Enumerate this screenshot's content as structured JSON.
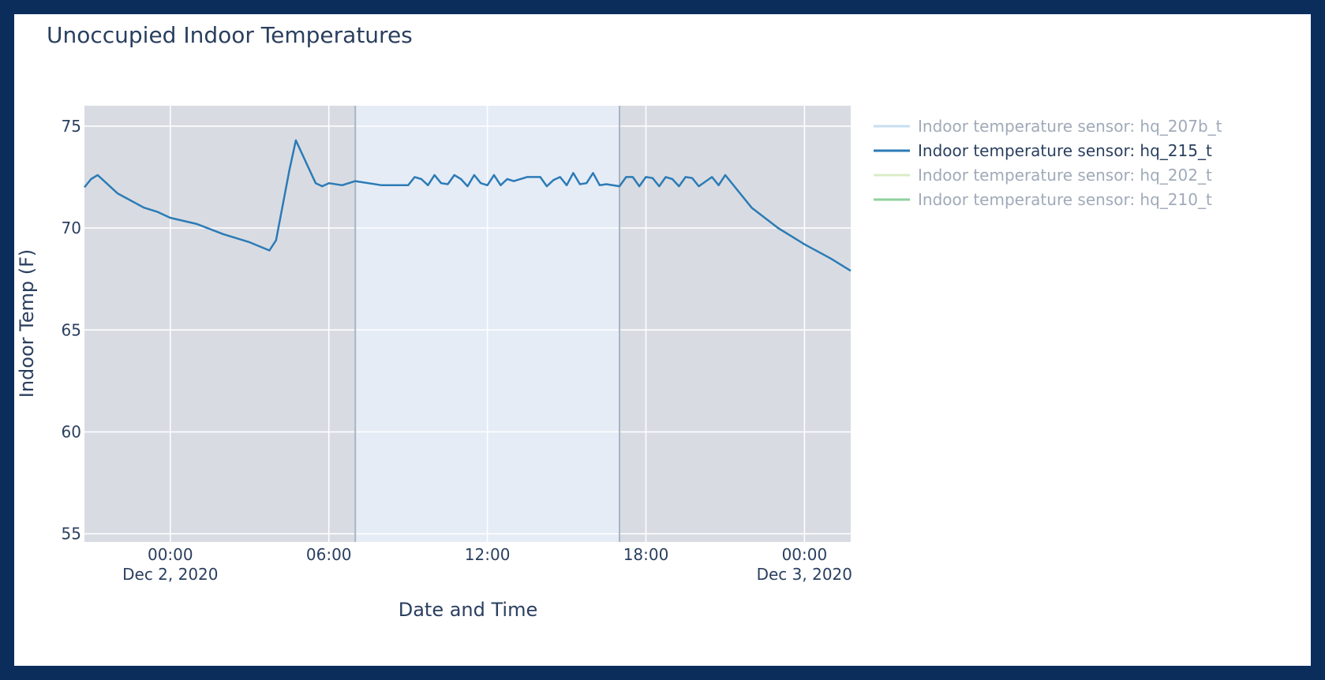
{
  "chart_data": {
    "type": "line",
    "title": "Unoccupied Indoor Temperatures",
    "xlabel": "Date and Time",
    "ylabel": "Indoor Temp (F)",
    "x_tick_labels": [
      {
        "time": "2020-12-02T00:00",
        "line1": "00:00",
        "line2": "Dec 2, 2020"
      },
      {
        "time": "2020-12-02T06:00",
        "line1": "06:00",
        "line2": ""
      },
      {
        "time": "2020-12-02T12:00",
        "line1": "12:00",
        "line2": ""
      },
      {
        "time": "2020-12-02T18:00",
        "line1": "18:00",
        "line2": ""
      },
      {
        "time": "2020-12-03T00:00",
        "line1": "00:00",
        "line2": "Dec 3, 2020"
      }
    ],
    "xlim": [
      "2020-12-01T20:45",
      "2020-12-03T01:45"
    ],
    "y_ticks": [
      55,
      60,
      65,
      70,
      75
    ],
    "ylim": [
      54.6,
      76
    ],
    "grid": true,
    "legend_position": "right",
    "shaded_regions": [
      {
        "start": "2020-12-01T20:45",
        "end": "2020-12-02T07:00",
        "label": "unoccupied"
      },
      {
        "start": "2020-12-02T17:00",
        "end": "2020-12-03T01:45",
        "label": "unoccupied"
      }
    ],
    "series": [
      {
        "name": "Indoor temperature sensor: hq_207b_t",
        "color": "#c7dff0",
        "visible": false,
        "x": [],
        "y": []
      },
      {
        "name": "Indoor temperature sensor: hq_215_t",
        "color": "#2c7bb6",
        "visible": true,
        "x": [
          "2020-12-01T20:45",
          "2020-12-01T21:00",
          "2020-12-01T21:15",
          "2020-12-01T22:00",
          "2020-12-01T23:00",
          "2020-12-01T23:30",
          "2020-12-02T00:00",
          "2020-12-02T01:00",
          "2020-12-02T02:00",
          "2020-12-02T03:00",
          "2020-12-02T03:45",
          "2020-12-02T04:00",
          "2020-12-02T04:30",
          "2020-12-02T04:45",
          "2020-12-02T05:15",
          "2020-12-02T05:30",
          "2020-12-02T05:45",
          "2020-12-02T06:00",
          "2020-12-02T06:30",
          "2020-12-02T07:00",
          "2020-12-02T08:00",
          "2020-12-02T09:00",
          "2020-12-02T09:15",
          "2020-12-02T09:30",
          "2020-12-02T09:45",
          "2020-12-02T10:00",
          "2020-12-02T10:15",
          "2020-12-02T10:30",
          "2020-12-02T10:45",
          "2020-12-02T11:00",
          "2020-12-02T11:15",
          "2020-12-02T11:30",
          "2020-12-02T11:45",
          "2020-12-02T12:00",
          "2020-12-02T12:15",
          "2020-12-02T12:30",
          "2020-12-02T12:45",
          "2020-12-02T13:00",
          "2020-12-02T13:30",
          "2020-12-02T14:00",
          "2020-12-02T14:15",
          "2020-12-02T14:30",
          "2020-12-02T14:45",
          "2020-12-02T15:00",
          "2020-12-02T15:15",
          "2020-12-02T15:30",
          "2020-12-02T15:45",
          "2020-12-02T16:00",
          "2020-12-02T16:15",
          "2020-12-02T16:30",
          "2020-12-02T17:00",
          "2020-12-02T17:15",
          "2020-12-02T17:30",
          "2020-12-02T17:45",
          "2020-12-02T18:00",
          "2020-12-02T18:15",
          "2020-12-02T18:30",
          "2020-12-02T18:45",
          "2020-12-02T19:00",
          "2020-12-02T19:15",
          "2020-12-02T19:30",
          "2020-12-02T19:45",
          "2020-12-02T20:00",
          "2020-12-02T20:30",
          "2020-12-02T20:45",
          "2020-12-02T21:00",
          "2020-12-02T22:00",
          "2020-12-02T23:00",
          "2020-12-03T00:00",
          "2020-12-03T01:00",
          "2020-12-03T01:45"
        ],
        "y": [
          72.0,
          72.4,
          72.6,
          71.7,
          71.0,
          70.8,
          70.5,
          70.2,
          69.7,
          69.3,
          68.9,
          69.4,
          72.8,
          74.3,
          72.9,
          72.2,
          72.05,
          72.2,
          72.1,
          72.3,
          72.1,
          72.1,
          72.5,
          72.4,
          72.1,
          72.6,
          72.2,
          72.15,
          72.6,
          72.4,
          72.05,
          72.6,
          72.2,
          72.1,
          72.6,
          72.1,
          72.4,
          72.3,
          72.5,
          72.5,
          72.05,
          72.35,
          72.5,
          72.1,
          72.7,
          72.15,
          72.2,
          72.7,
          72.1,
          72.15,
          72.05,
          72.5,
          72.5,
          72.05,
          72.5,
          72.45,
          72.05,
          72.5,
          72.4,
          72.05,
          72.5,
          72.45,
          72.05,
          72.5,
          72.1,
          72.6,
          71.0,
          70.0,
          69.2,
          68.5,
          67.9
        ]
      },
      {
        "name": "Indoor temperature sensor: hq_202_t",
        "color": "#d9ecc7",
        "visible": false,
        "x": [],
        "y": []
      },
      {
        "name": "Indoor temperature sensor: hq_210_t",
        "color": "#8fd19e",
        "visible": false,
        "x": [],
        "y": []
      }
    ]
  }
}
